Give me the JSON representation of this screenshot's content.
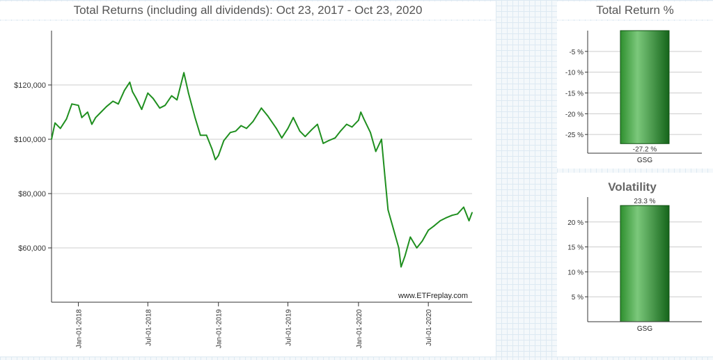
{
  "main_title": "Total Returns (including all dividends): Oct 23, 2017 - Oct 23, 2020",
  "total_return_title": "Total Return %",
  "watermark": "www.ETFreplay.com",
  "colors": {
    "line": "#1f8f1f",
    "bar_dark": "#15651a",
    "bar_light": "#7bc87b",
    "grid": "#cccccc",
    "axis": "#333333"
  },
  "chart_data": [
    {
      "type": "line",
      "title": "Total Returns (including all dividends): Oct 23, 2017 - Oct 23, 2020",
      "xlabel": "",
      "ylabel": "",
      "x_tick_labels": [
        "Jan-01-2018",
        "Jul-01-2018",
        "Jan-01-2019",
        "Jul-01-2019",
        "Jan-01-2020",
        "Jul-01-2020"
      ],
      "y_tick_labels": [
        "$60,000",
        "$80,000",
        "$100,000",
        "$120,000"
      ],
      "y_ticks": [
        60000,
        80000,
        100000,
        120000
      ],
      "ylim": [
        40000,
        140000
      ],
      "xlim": [
        "2017-10-23",
        "2020-10-23"
      ],
      "grid": true,
      "series": [
        {
          "x": [
            "2017-10-23",
            "2017-11-01",
            "2017-11-15",
            "2017-12-01",
            "2017-12-15",
            "2018-01-01",
            "2018-01-10",
            "2018-01-25",
            "2018-02-05",
            "2018-02-15",
            "2018-03-01",
            "2018-03-15",
            "2018-04-01",
            "2018-04-15",
            "2018-05-01",
            "2018-05-15",
            "2018-05-22",
            "2018-06-01",
            "2018-06-15",
            "2018-07-01",
            "2018-07-15",
            "2018-08-01",
            "2018-08-15",
            "2018-09-01",
            "2018-09-15",
            "2018-10-03",
            "2018-10-15",
            "2018-11-01",
            "2018-11-15",
            "2018-12-01",
            "2018-12-15",
            "2018-12-24",
            "2019-01-01",
            "2019-01-15",
            "2019-02-01",
            "2019-02-15",
            "2019-03-01",
            "2019-03-15",
            "2019-04-01",
            "2019-04-23",
            "2019-05-10",
            "2019-06-01",
            "2019-06-15",
            "2019-07-01",
            "2019-07-15",
            "2019-08-01",
            "2019-08-15",
            "2019-09-01",
            "2019-09-16",
            "2019-10-01",
            "2019-10-15",
            "2019-11-01",
            "2019-11-15",
            "2019-12-01",
            "2019-12-15",
            "2020-01-01",
            "2020-01-07",
            "2020-01-15",
            "2020-02-01",
            "2020-02-15",
            "2020-03-01",
            "2020-03-10",
            "2020-03-18",
            "2020-04-01",
            "2020-04-15",
            "2020-04-21",
            "2020-05-01",
            "2020-05-15",
            "2020-06-01",
            "2020-06-15",
            "2020-07-01",
            "2020-07-15",
            "2020-08-01",
            "2020-08-15",
            "2020-09-01",
            "2020-09-15",
            "2020-10-01",
            "2020-10-15",
            "2020-10-23"
          ],
          "y": [
            100000,
            106000,
            104000,
            107500,
            113000,
            112500,
            108000,
            110000,
            105500,
            108000,
            110000,
            112000,
            114000,
            113000,
            118000,
            121000,
            117500,
            115000,
            111000,
            117000,
            115000,
            111500,
            112500,
            116000,
            114500,
            124500,
            117000,
            108000,
            101500,
            101500,
            96500,
            92500,
            94000,
            99500,
            102500,
            103000,
            105000,
            104000,
            106500,
            111500,
            108500,
            104000,
            100500,
            104000,
            108000,
            103000,
            101000,
            103500,
            105500,
            98500,
            99500,
            100500,
            103000,
            105500,
            104500,
            107000,
            110000,
            107500,
            102500,
            95500,
            100000,
            86000,
            74000,
            67000,
            60000,
            53000,
            57000,
            64000,
            60000,
            62500,
            66500,
            68000,
            70000,
            71000,
            72000,
            72500,
            75000,
            70000,
            73000
          ]
        }
      ]
    },
    {
      "type": "bar",
      "title": "Total Return %",
      "categories": [
        "GSG"
      ],
      "values": [
        -27.2
      ],
      "value_labels": [
        "-27.2 %"
      ],
      "y_tick_labels": [
        "-5 %",
        "-10 %",
        "-15 %",
        "-20 %",
        "-25 %"
      ],
      "y_ticks": [
        -5,
        -10,
        -15,
        -20,
        -25
      ],
      "ylim": [
        -29.5,
        0
      ],
      "grid": true
    },
    {
      "type": "bar",
      "title": "Volatility",
      "categories": [
        "GSG"
      ],
      "values": [
        23.3
      ],
      "value_labels": [
        "23.3 %"
      ],
      "y_tick_labels": [
        "5 %",
        "10 %",
        "15 %",
        "20 %"
      ],
      "y_ticks": [
        5,
        10,
        15,
        20
      ],
      "ylim": [
        0,
        25
      ],
      "grid": true
    }
  ]
}
